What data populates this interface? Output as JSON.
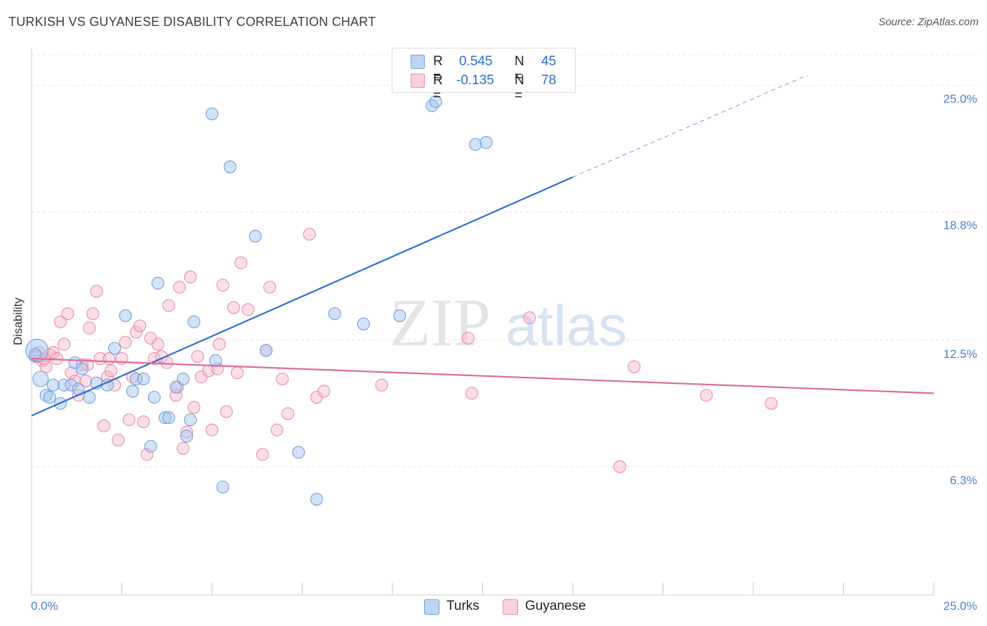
{
  "title": "TURKISH VS GUYANESE DISABILITY CORRELATION CHART",
  "source": "Source: ZipAtlas.com",
  "watermark": {
    "zip": "ZIP",
    "atlas": "atlas"
  },
  "legend": {
    "turks": {
      "r_label": "R = ",
      "r_value": "0.545",
      "n_label": "N = ",
      "n_value": "45"
    },
    "guyanese": {
      "r_label": "R = ",
      "r_value": "-0.135",
      "n_label": "N = ",
      "n_value": "78"
    }
  },
  "bottom_legend": {
    "turks": "Turks",
    "guyanese": "Guyanese"
  },
  "colors": {
    "turks_fill": "#a8c8f0",
    "turks_stroke": "#6f9fd8",
    "turks_line": "#2a6fd0",
    "guyanese_fill": "#f7b8cc",
    "guyanese_stroke": "#e88aa8",
    "guyanese_line": "#e06a96",
    "tick_label": "#4a7fd0",
    "grid": "#e6e6e6"
  },
  "chart_data": {
    "type": "scatter",
    "title": "TURKISH VS GUYANESE DISABILITY CORRELATION CHART",
    "xlabel": "",
    "ylabel": "Disability",
    "xlim": [
      0,
      25
    ],
    "ylim": [
      0,
      26.5
    ],
    "x_tick_labels": [
      "0.0%",
      "25.0%"
    ],
    "y_ticks": [
      6.3,
      12.5,
      18.8,
      25.0
    ],
    "y_tick_labels": [
      "6.3%",
      "12.5%",
      "18.8%",
      "25.0%"
    ],
    "series": [
      {
        "name": "Turks",
        "r": 0.545,
        "n": 45,
        "trend": {
          "x0": 0,
          "y0": 8.8,
          "x1": 15,
          "y1": 20.5,
          "dashed_to_x": 21.5,
          "dashed_y": 25.5
        },
        "points": [
          [
            0.15,
            12.0
          ],
          [
            0.25,
            10.6
          ],
          [
            0.4,
            9.8
          ],
          [
            0.5,
            9.7
          ],
          [
            0.6,
            10.3
          ],
          [
            0.8,
            9.4
          ],
          [
            0.9,
            10.3
          ],
          [
            1.1,
            10.3
          ],
          [
            1.2,
            11.4
          ],
          [
            1.3,
            10.1
          ],
          [
            1.6,
            9.7
          ],
          [
            1.8,
            10.4
          ],
          [
            2.1,
            10.3
          ],
          [
            2.3,
            12.1
          ],
          [
            2.6,
            13.7
          ],
          [
            2.8,
            10.0
          ],
          [
            2.9,
            10.6
          ],
          [
            3.1,
            10.6
          ],
          [
            3.3,
            7.3
          ],
          [
            3.4,
            9.7
          ],
          [
            3.5,
            15.3
          ],
          [
            3.7,
            8.7
          ],
          [
            3.8,
            8.7
          ],
          [
            4.0,
            10.2
          ],
          [
            4.2,
            10.6
          ],
          [
            4.3,
            7.8
          ],
          [
            4.4,
            8.6
          ],
          [
            4.5,
            13.4
          ],
          [
            5.0,
            23.6
          ],
          [
            5.1,
            11.5
          ],
          [
            5.3,
            5.3
          ],
          [
            5.5,
            21.0
          ],
          [
            6.2,
            17.6
          ],
          [
            6.5,
            12.0
          ],
          [
            7.4,
            7.0
          ],
          [
            7.9,
            4.7
          ],
          [
            8.4,
            13.8
          ],
          [
            9.2,
            13.3
          ],
          [
            10.2,
            13.7
          ],
          [
            11.1,
            24.0
          ],
          [
            11.2,
            24.2
          ],
          [
            12.3,
            22.1
          ],
          [
            12.6,
            22.2
          ],
          [
            1.4,
            11.1
          ],
          [
            0.1,
            11.8
          ]
        ]
      },
      {
        "name": "Guyanese",
        "r": -0.135,
        "n": 78,
        "trend": {
          "x0": 0,
          "y0": 11.6,
          "x1": 25,
          "y1": 9.9
        },
        "points": [
          [
            0.1,
            11.7
          ],
          [
            0.2,
            11.9
          ],
          [
            0.3,
            11.5
          ],
          [
            0.4,
            11.2
          ],
          [
            0.5,
            11.8
          ],
          [
            0.6,
            11.9
          ],
          [
            0.7,
            11.6
          ],
          [
            0.8,
            13.4
          ],
          [
            0.9,
            12.3
          ],
          [
            1.0,
            13.8
          ],
          [
            1.1,
            10.9
          ],
          [
            1.2,
            10.5
          ],
          [
            1.3,
            9.8
          ],
          [
            1.4,
            11.3
          ],
          [
            1.5,
            10.5
          ],
          [
            1.6,
            13.1
          ],
          [
            1.7,
            13.8
          ],
          [
            1.8,
            14.9
          ],
          [
            1.9,
            11.6
          ],
          [
            2.0,
            8.3
          ],
          [
            2.1,
            10.7
          ],
          [
            2.2,
            11.0
          ],
          [
            2.3,
            10.3
          ],
          [
            2.4,
            7.6
          ],
          [
            2.5,
            11.6
          ],
          [
            2.6,
            12.4
          ],
          [
            2.7,
            8.6
          ],
          [
            2.8,
            10.7
          ],
          [
            2.9,
            12.9
          ],
          [
            3.0,
            13.2
          ],
          [
            3.1,
            8.5
          ],
          [
            3.2,
            6.9
          ],
          [
            3.3,
            12.6
          ],
          [
            3.4,
            11.6
          ],
          [
            3.5,
            12.3
          ],
          [
            3.6,
            11.7
          ],
          [
            3.8,
            14.2
          ],
          [
            4.0,
            9.8
          ],
          [
            4.1,
            15.1
          ],
          [
            4.2,
            7.2
          ],
          [
            4.3,
            8.0
          ],
          [
            4.4,
            15.6
          ],
          [
            4.5,
            9.2
          ],
          [
            4.6,
            11.7
          ],
          [
            4.7,
            10.7
          ],
          [
            4.9,
            11.0
          ],
          [
            5.0,
            8.1
          ],
          [
            5.2,
            12.3
          ],
          [
            5.3,
            15.2
          ],
          [
            5.4,
            9.0
          ],
          [
            5.6,
            14.1
          ],
          [
            5.7,
            10.9
          ],
          [
            5.8,
            16.3
          ],
          [
            6.0,
            14.0
          ],
          [
            6.4,
            6.9
          ],
          [
            6.5,
            12.0
          ],
          [
            6.6,
            15.1
          ],
          [
            6.8,
            8.1
          ],
          [
            7.1,
            8.9
          ],
          [
            7.7,
            17.7
          ],
          [
            7.9,
            9.7
          ],
          [
            8.1,
            10.0
          ],
          [
            9.7,
            10.3
          ],
          [
            12.1,
            12.6
          ],
          [
            12.2,
            9.9
          ],
          [
            13.8,
            13.6
          ],
          [
            16.3,
            6.3
          ],
          [
            16.7,
            11.2
          ],
          [
            18.7,
            9.8
          ],
          [
            20.5,
            9.4
          ],
          [
            0.15,
            11.7
          ],
          [
            0.35,
            11.6
          ],
          [
            1.55,
            11.3
          ],
          [
            2.15,
            11.6
          ],
          [
            3.75,
            11.4
          ],
          [
            4.05,
            10.2
          ],
          [
            5.15,
            11.1
          ],
          [
            6.95,
            10.6
          ]
        ]
      }
    ]
  }
}
